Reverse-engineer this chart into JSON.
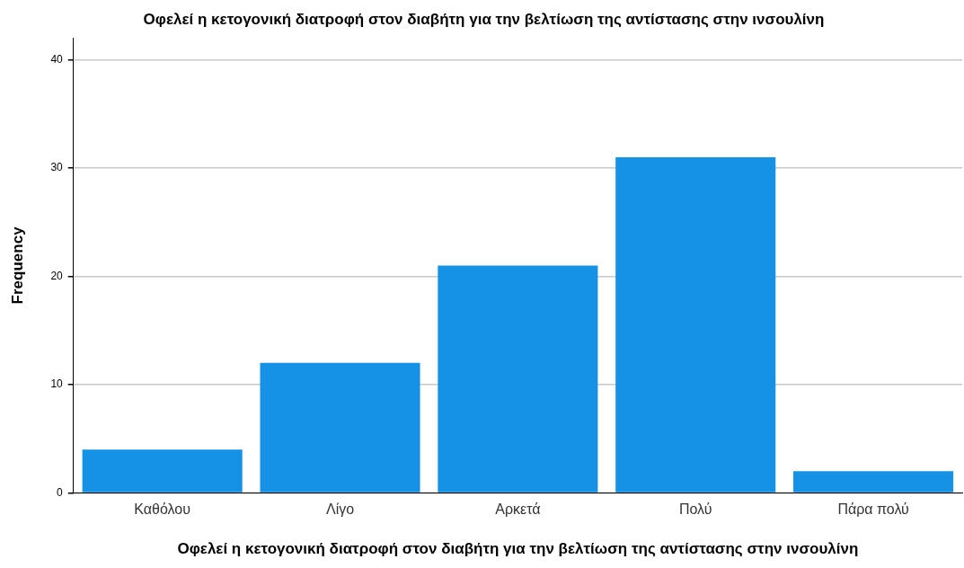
{
  "chart_data": {
    "type": "bar",
    "title": "Οφελεί η κετογονική διατροφή στον διαβήτη για την βελτίωση της αντίστασης στην ινσουλίνη",
    "xlabel": "Οφελεί η κετογονική διατροφή στον διαβήτη για την βελτίωση της αντίστασης στην ινσουλίνη",
    "ylabel": "Frequency",
    "categories": [
      "Καθόλου",
      "Λίγο",
      "Αρκετά",
      "Πολύ",
      "Πάρα πολύ"
    ],
    "values": [
      4,
      12,
      21,
      31,
      2
    ],
    "color": "#1591e6",
    "ylim": [
      0,
      42
    ],
    "yticks": [
      0,
      10,
      20,
      30,
      40
    ],
    "grid": "y"
  }
}
